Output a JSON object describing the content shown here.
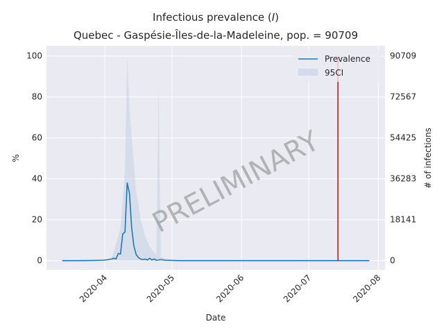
{
  "chart_data": {
    "type": "line",
    "title": "Infectious prevalence (I)",
    "title_parts": [
      "Infectious prevalence (",
      "I",
      ")"
    ],
    "subtitle": "Quebec - Gaspésie-Îles-de-la-Madeleine, pop. = 90709",
    "xlabel": "Date",
    "ylabel": "%",
    "y2label": "# of infections",
    "xlim": [
      "2020-03-06",
      "2020-08-04"
    ],
    "ylim": [
      -4.5,
      105
    ],
    "x_ticks": [
      "2020-04",
      "2020-05",
      "2020-06",
      "2020-07",
      "2020-08"
    ],
    "y_ticks": [
      "0",
      "20",
      "40",
      "60",
      "80",
      "100"
    ],
    "y2_ticks": [
      "0",
      "18141",
      "36283",
      "54425",
      "72567",
      "90709"
    ],
    "grid": true,
    "legend_position": "top-right",
    "series": [
      {
        "name": "Prevalence",
        "color": "#1f77b4",
        "points": [
          [
            "2020-03-13",
            0
          ],
          [
            "2020-03-20",
            0
          ],
          [
            "2020-03-27",
            0.1
          ],
          [
            "2020-03-31",
            0.2
          ],
          [
            "2020-04-02",
            0.4
          ],
          [
            "2020-04-04",
            0.8
          ],
          [
            "2020-04-05",
            1.2
          ],
          [
            "2020-04-06",
            0.8
          ],
          [
            "2020-04-07",
            3.5
          ],
          [
            "2020-04-08",
            3.2
          ],
          [
            "2020-04-09",
            13
          ],
          [
            "2020-04-10",
            14
          ],
          [
            "2020-04-11",
            38
          ],
          [
            "2020-04-12",
            33
          ],
          [
            "2020-04-13",
            16
          ],
          [
            "2020-04-14",
            7
          ],
          [
            "2020-04-15",
            3
          ],
          [
            "2020-04-16",
            1.5
          ],
          [
            "2020-04-17",
            0.8
          ],
          [
            "2020-04-18",
            0.5
          ],
          [
            "2020-04-19",
            0.8
          ],
          [
            "2020-04-20",
            0.3
          ],
          [
            "2020-04-21",
            1.2
          ],
          [
            "2020-04-22",
            0.3
          ],
          [
            "2020-04-23",
            0.8
          ],
          [
            "2020-04-24",
            0.2
          ],
          [
            "2020-04-26",
            0.5
          ],
          [
            "2020-04-28",
            0.2
          ],
          [
            "2020-05-05",
            0
          ],
          [
            "2020-06-01",
            0
          ],
          [
            "2020-07-01",
            0
          ],
          [
            "2020-07-28",
            0
          ]
        ]
      },
      {
        "name": "95CI",
        "color": "#b0c4de",
        "band": [
          [
            "2020-04-04",
            0,
            1
          ],
          [
            "2020-04-06",
            0,
            8
          ],
          [
            "2020-04-08",
            0,
            16
          ],
          [
            "2020-04-10",
            0,
            44
          ],
          [
            "2020-04-11",
            0,
            100
          ],
          [
            "2020-04-12",
            0,
            75
          ],
          [
            "2020-04-13",
            0,
            60
          ],
          [
            "2020-04-15",
            0,
            34
          ],
          [
            "2020-04-17",
            0,
            20
          ],
          [
            "2020-04-19",
            0,
            12
          ],
          [
            "2020-04-21",
            0,
            7
          ],
          [
            "2020-04-23",
            0,
            4
          ],
          [
            "2020-04-24",
            0,
            3
          ],
          [
            "2020-04-25",
            0,
            85
          ],
          [
            "2020-04-26",
            0,
            2
          ],
          [
            "2020-04-28",
            0,
            1
          ],
          [
            "2020-05-01",
            0,
            0.3
          ],
          [
            "2020-05-05",
            0,
            0
          ]
        ]
      }
    ],
    "vline": {
      "x": "2020-07-14",
      "color": "#ff0000"
    },
    "watermark": "PRELIMINARY"
  }
}
